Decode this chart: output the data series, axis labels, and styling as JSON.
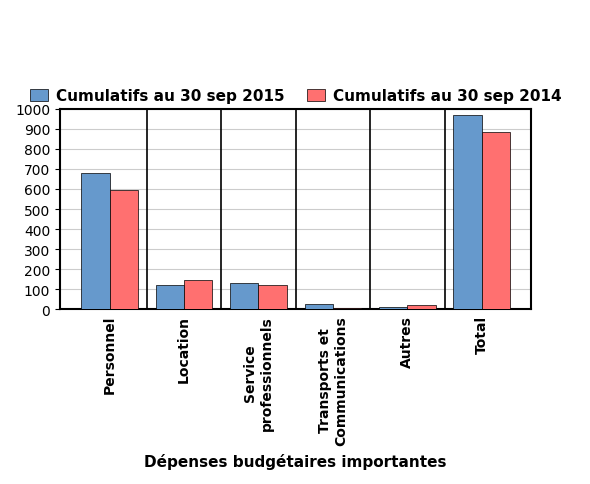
{
  "categories": [
    "Personnel",
    "Location",
    "Service\nprofessionnels",
    "Transports et\nCommunications",
    "Autres",
    "Total"
  ],
  "values_2015": [
    680,
    120,
    130,
    25,
    12,
    967
  ],
  "values_2014": [
    595,
    145,
    120,
    5,
    20,
    885
  ],
  "color_2015": "#6699CC",
  "color_2014": "#FF7070",
  "bar_edge_color": "#000000",
  "legend_2015": "Cumulatifs au 30 sep 2015",
  "legend_2014": "Cumulatifs au 30 sep 2014",
  "xlabel": "Dépenses budgétaires importantes",
  "ylim": [
    0,
    1000
  ],
  "yticks": [
    0,
    100,
    200,
    300,
    400,
    500,
    600,
    700,
    800,
    900,
    1000
  ],
  "background_color": "#FFFFFF",
  "plot_bg_color": "#FFFFFF",
  "grid_color": "#CCCCCC",
  "label_fontsize": 11,
  "tick_fontsize": 10,
  "bar_width": 0.38,
  "separator_color": "#000000"
}
